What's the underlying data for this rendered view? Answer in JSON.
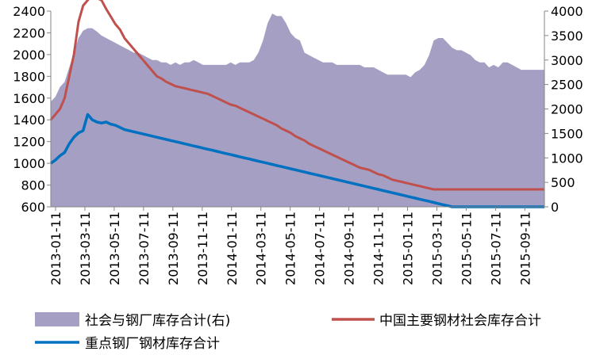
{
  "chart_data": {
    "type": "area",
    "y_left": {
      "ticks": [
        "600",
        "800",
        "1000",
        "1200",
        "1400",
        "1600",
        "1800",
        "2000",
        "2200",
        "2400"
      ],
      "range": [
        600,
        2400
      ]
    },
    "y_right": {
      "ticks": [
        "0",
        "500",
        "1000",
        "1500",
        "2000",
        "2500",
        "3000",
        "3500",
        "4000"
      ],
      "range": [
        0,
        4000
      ]
    },
    "x_ticks": [
      "2013-01-11",
      "2013-03-11",
      "2013-05-11",
      "2013-07-11",
      "2013-09-11",
      "2013-11-11",
      "2014-01-11",
      "2014-03-11",
      "2014-05-11",
      "2014-07-11",
      "2014-09-11",
      "2014-11-11",
      "2015-01-11",
      "2015-03-11",
      "2015-05-11",
      "2015-07-11",
      "2015-09-11"
    ],
    "series": [
      {
        "name": "社会与钢厂库存合计(右)",
        "kind": "area",
        "axis": "right",
        "color": "#a49fc3",
        "values": [
          2150,
          2250,
          2450,
          2550,
          2850,
          3150,
          3450,
          3600,
          3650,
          3650,
          3580,
          3500,
          3450,
          3400,
          3350,
          3300,
          3250,
          3200,
          3150,
          3150,
          3100,
          3050,
          3000,
          3000,
          2950,
          2950,
          2900,
          2950,
          2900,
          2950,
          2950,
          3000,
          2950,
          2900,
          2900,
          2900,
          2900,
          2900,
          2900,
          2950,
          2900,
          2950,
          2950,
          2950,
          3000,
          3150,
          3400,
          3750,
          3950,
          3900,
          3900,
          3750,
          3550,
          3450,
          3400,
          3150,
          3100,
          3050,
          3000,
          2950,
          2950,
          2950,
          2900,
          2900,
          2900,
          2900,
          2900,
          2900,
          2850,
          2850,
          2850,
          2800,
          2750,
          2700,
          2700,
          2700,
          2700,
          2700,
          2650,
          2750,
          2800,
          2900,
          3100,
          3400,
          3450,
          3450,
          3350,
          3250,
          3200,
          3200,
          3150,
          3100,
          3000,
          2950,
          2950,
          2850,
          2900,
          2850,
          2950,
          2950,
          2900,
          2850,
          2800,
          2800,
          2800,
          2800,
          2800,
          2800
        ]
      },
      {
        "name": "中国主要钢材社会库存合计",
        "kind": "line",
        "axis": "left",
        "color": "#c0504d",
        "values": [
          1400,
          1450,
          1500,
          1600,
          1800,
          2000,
          2300,
          2450,
          2500,
          2550,
          2520,
          2500,
          2420,
          2350,
          2280,
          2230,
          2150,
          2100,
          2050,
          2000,
          1950,
          1900,
          1850,
          1800,
          1780,
          1750,
          1730,
          1710,
          1700,
          1690,
          1680,
          1670,
          1660,
          1650,
          1640,
          1620,
          1600,
          1580,
          1560,
          1540,
          1530,
          1510,
          1490,
          1470,
          1450,
          1430,
          1410,
          1390,
          1370,
          1350,
          1320,
          1300,
          1280,
          1250,
          1230,
          1210,
          1180,
          1160,
          1140,
          1120,
          1100,
          1080,
          1060,
          1040,
          1020,
          1000,
          980,
          960,
          950,
          940,
          920,
          900,
          890,
          870,
          850,
          840,
          830,
          820,
          810,
          800,
          790,
          780,
          770,
          760,
          760,
          760,
          760,
          760,
          760,
          760,
          760,
          760,
          760,
          760,
          760,
          760,
          760,
          760,
          760,
          760,
          760,
          760,
          760,
          760,
          760,
          760,
          760,
          760
        ]
      },
      {
        "name": "重点钢厂钢材库存合计",
        "kind": "line",
        "axis": "left",
        "color": "#0070c0",
        "values": [
          1000,
          1030,
          1070,
          1100,
          1180,
          1240,
          1280,
          1300,
          1450,
          1400,
          1380,
          1370,
          1380,
          1360,
          1350,
          1330,
          1310,
          1300,
          1290,
          1280,
          1270,
          1260,
          1250,
          1240,
          1230,
          1220,
          1210,
          1200,
          1190,
          1180,
          1170,
          1160,
          1150,
          1140,
          1130,
          1120,
          1110,
          1100,
          1090,
          1080,
          1070,
          1060,
          1050,
          1040,
          1030,
          1020,
          1010,
          1000,
          990,
          980,
          970,
          960,
          950,
          940,
          930,
          920,
          910,
          900,
          890,
          880,
          870,
          860,
          850,
          840,
          830,
          820,
          810,
          800,
          790,
          780,
          770,
          760,
          750,
          740,
          730,
          720,
          710,
          700,
          690,
          680,
          670,
          660,
          650,
          640,
          630,
          620,
          610,
          600,
          600,
          600,
          600,
          600,
          600,
          600,
          600,
          600,
          600,
          600,
          600,
          600,
          600,
          600,
          600,
          600,
          600,
          600,
          600,
          600
        ]
      }
    ]
  }
}
